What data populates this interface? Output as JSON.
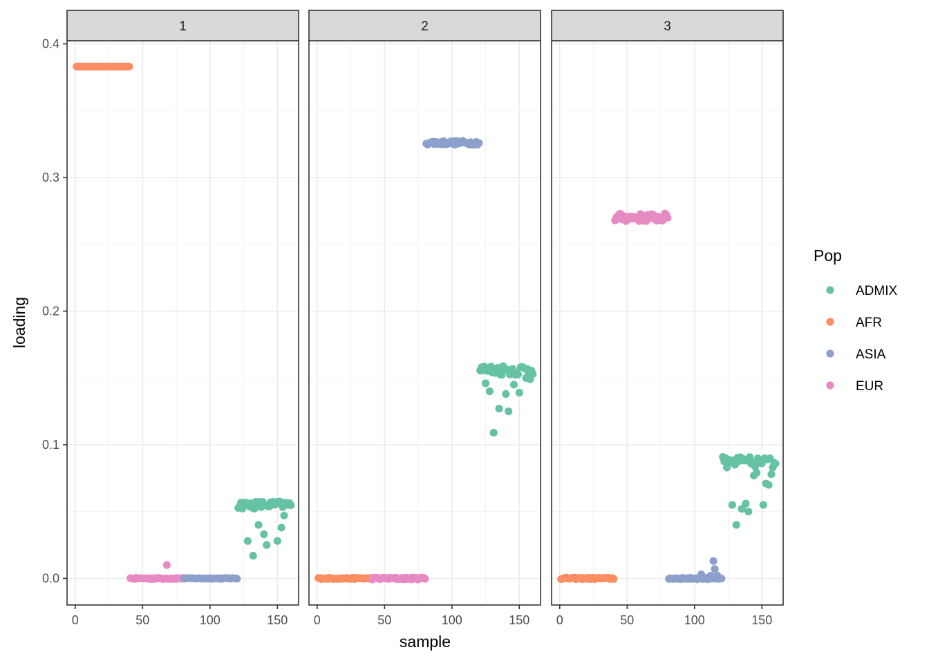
{
  "chart_data": {
    "type": "scatter",
    "facet_type": "facet_wrap",
    "xlabel": "sample",
    "ylabel": "loading",
    "xlim": [
      -5,
      165
    ],
    "ylim": [
      -0.018,
      0.4
    ],
    "x_ticks": [
      0,
      50,
      100,
      150
    ],
    "x_tick_labels": [
      "0",
      "50",
      "100",
      "150"
    ],
    "y_ticks": [
      0.0,
      0.1,
      0.2,
      0.3,
      0.4
    ],
    "y_tick_labels": [
      "0.0",
      "0.1",
      "0.2",
      "0.3",
      "0.4"
    ],
    "grid": true,
    "legend": {
      "title": "Pop",
      "position": "right",
      "entries": [
        {
          "label": "ADMIX",
          "color": "#66C2A5"
        },
        {
          "label": "AFR",
          "color": "#FC8D62"
        },
        {
          "label": "ASIA",
          "color": "#8DA0CB"
        },
        {
          "label": "EUR",
          "color": "#E78AC3"
        }
      ]
    },
    "panels": [
      {
        "strip": "1",
        "series": [
          {
            "name": "AFR",
            "x_range": [
              1,
              40
            ],
            "y": 0.383,
            "jitter": 0.0,
            "outliers": []
          },
          {
            "name": "EUR",
            "x_range": [
              41,
              80
            ],
            "y": 0.0,
            "jitter": 0.0005,
            "outliers": [
              [
                68,
                0.01
              ]
            ]
          },
          {
            "name": "ASIA",
            "x_range": [
              81,
              120
            ],
            "y": 0.0,
            "jitter": 0.0003,
            "outliers": []
          },
          {
            "name": "ADMIX",
            "x_range": [
              121,
              160
            ],
            "y": 0.055,
            "jitter": 0.003,
            "outliers": [
              [
                128,
                0.028
              ],
              [
                132,
                0.017
              ],
              [
                136,
                0.04
              ],
              [
                140,
                0.033
              ],
              [
                142,
                0.025
              ],
              [
                150,
                0.028
              ],
              [
                153,
                0.038
              ],
              [
                155,
                0.047
              ]
            ]
          }
        ]
      },
      {
        "strip": "2",
        "series": [
          {
            "name": "AFR",
            "x_range": [
              1,
              40
            ],
            "y": 0.0,
            "jitter": 0.0005,
            "outliers": []
          },
          {
            "name": "EUR",
            "x_range": [
              41,
              80
            ],
            "y": 0.0,
            "jitter": 0.0008,
            "outliers": []
          },
          {
            "name": "ASIA",
            "x_range": [
              81,
              120
            ],
            "y": 0.326,
            "jitter": 0.0015,
            "outliers": []
          },
          {
            "name": "ADMIX",
            "x_range": [
              121,
              160
            ],
            "y": 0.156,
            "jitter": 0.004,
            "outliers": [
              [
                125,
                0.146
              ],
              [
                128,
                0.14
              ],
              [
                131,
                0.109
              ],
              [
                135,
                0.127
              ],
              [
                140,
                0.138
              ],
              [
                142,
                0.125
              ],
              [
                146,
                0.145
              ],
              [
                150,
                0.139
              ],
              [
                155,
                0.15
              ],
              [
                158,
                0.149
              ]
            ]
          }
        ]
      },
      {
        "strip": "3",
        "series": [
          {
            "name": "AFR",
            "x_range": [
              1,
              40
            ],
            "y": 0.0,
            "jitter": 0.0006,
            "outliers": []
          },
          {
            "name": "EUR",
            "x_range": [
              41,
              80
            ],
            "y": 0.27,
            "jitter": 0.003,
            "outliers": []
          },
          {
            "name": "ASIA",
            "x_range": [
              81,
              120
            ],
            "y": 0.0,
            "jitter": 0.0006,
            "outliers": [
              [
                105,
                0.003
              ],
              [
                112,
                0.002
              ],
              [
                114,
                0.013
              ],
              [
                115,
                0.007
              ],
              [
                117,
                0.002
              ]
            ]
          },
          {
            "name": "ADMIX",
            "x_range": [
              121,
              160
            ],
            "y": 0.087,
            "jitter": 0.004,
            "outliers": [
              [
                124,
                0.083
              ],
              [
                128,
                0.055
              ],
              [
                131,
                0.04
              ],
              [
                135,
                0.052
              ],
              [
                138,
                0.056
              ],
              [
                140,
                0.05
              ],
              [
                144,
                0.077
              ],
              [
                146,
                0.079
              ],
              [
                151,
                0.055
              ],
              [
                153,
                0.071
              ],
              [
                155,
                0.07
              ],
              [
                157,
                0.078
              ],
              [
                158,
                0.083
              ]
            ]
          }
        ]
      }
    ]
  }
}
